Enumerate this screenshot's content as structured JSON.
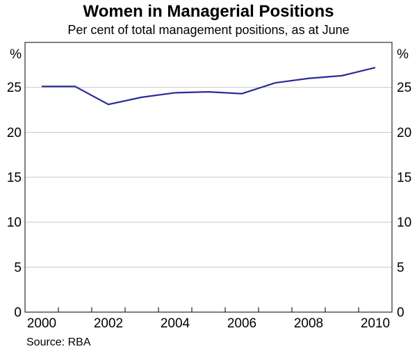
{
  "page": {
    "title": "Women in Managerial Positions",
    "subtitle": "Per cent of total management positions, as at June",
    "source": "Source: RBA"
  },
  "chart_data": {
    "type": "line",
    "title": "Women in Managerial Positions",
    "subtitle": "Per cent of total management positions, as at June",
    "source": "Source: RBA",
    "x": [
      2000,
      2001,
      2002,
      2003,
      2004,
      2005,
      2006,
      2007,
      2008,
      2009,
      2010
    ],
    "series": [
      {
        "name": "Women in managerial positions",
        "values": [
          25.1,
          25.1,
          23.1,
          23.9,
          24.4,
          24.5,
          24.3,
          25.5,
          26.0,
          26.3,
          27.2
        ],
        "color": "#2b2b96"
      }
    ],
    "xlim": [
      2000,
      2011
    ],
    "ylim": [
      0,
      30
    ],
    "yticks": [
      0,
      5,
      10,
      15,
      20,
      25
    ],
    "x_labeled_years": [
      2000,
      2002,
      2004,
      2006,
      2008,
      2010
    ],
    "y_unit_left": "%",
    "y_unit_right": "%",
    "grid": "horizontal",
    "legend": "none"
  },
  "style": {
    "line_color": "#2b2b96",
    "grid_color": "#c9c9c9",
    "frame_color": "#3c3c3c",
    "tick_color": "#222222",
    "background": "#ffffff",
    "axis_font_px": 19
  }
}
